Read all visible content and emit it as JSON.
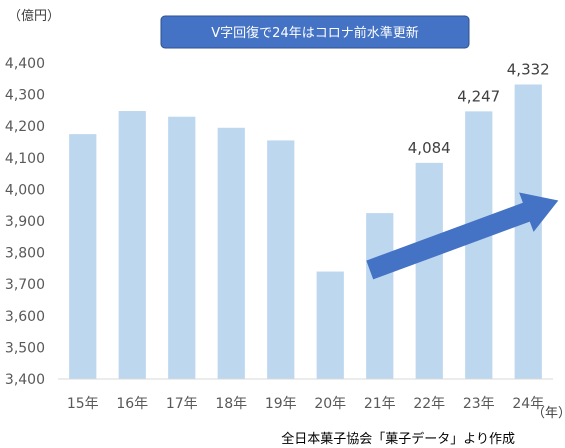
{
  "chart_data": {
    "type": "bar",
    "title": "V字回復で24年はコロナ前水準更新",
    "y_unit_label": "（億円）",
    "x_unit_label": "（年）",
    "source": "全日本菓子協会「菓子データ」より作成",
    "categories": [
      "15年",
      "16年",
      "17年",
      "18年",
      "19年",
      "20年",
      "21年",
      "22年",
      "23年",
      "24年"
    ],
    "values": [
      4175,
      4248,
      4230,
      4195,
      4155,
      3740,
      3925,
      4084,
      4247,
      4332
    ],
    "data_labels": [
      "",
      "",
      "",
      "",
      "",
      "",
      "",
      "4,084",
      "4,247",
      "4,332"
    ],
    "ylim": [
      3400,
      4400
    ],
    "yticks": [
      3400,
      3500,
      3600,
      3700,
      3800,
      3900,
      4000,
      4100,
      4200,
      4300,
      4400
    ],
    "ytick_labels": [
      "3,400",
      "3,500",
      "3,600",
      "3,700",
      "3,800",
      "3,900",
      "4,000",
      "4,100",
      "4,200",
      "4,300",
      "4,400"
    ],
    "grid": false,
    "colors": {
      "bar": "#bdd7ee",
      "banner": "#4472c4",
      "banner_border": "#2f528f",
      "arrow": "#4472c4",
      "axis": "#d9d9d9"
    },
    "annotation_arrow": {
      "from_category": "21年",
      "to_category": "24年"
    }
  }
}
